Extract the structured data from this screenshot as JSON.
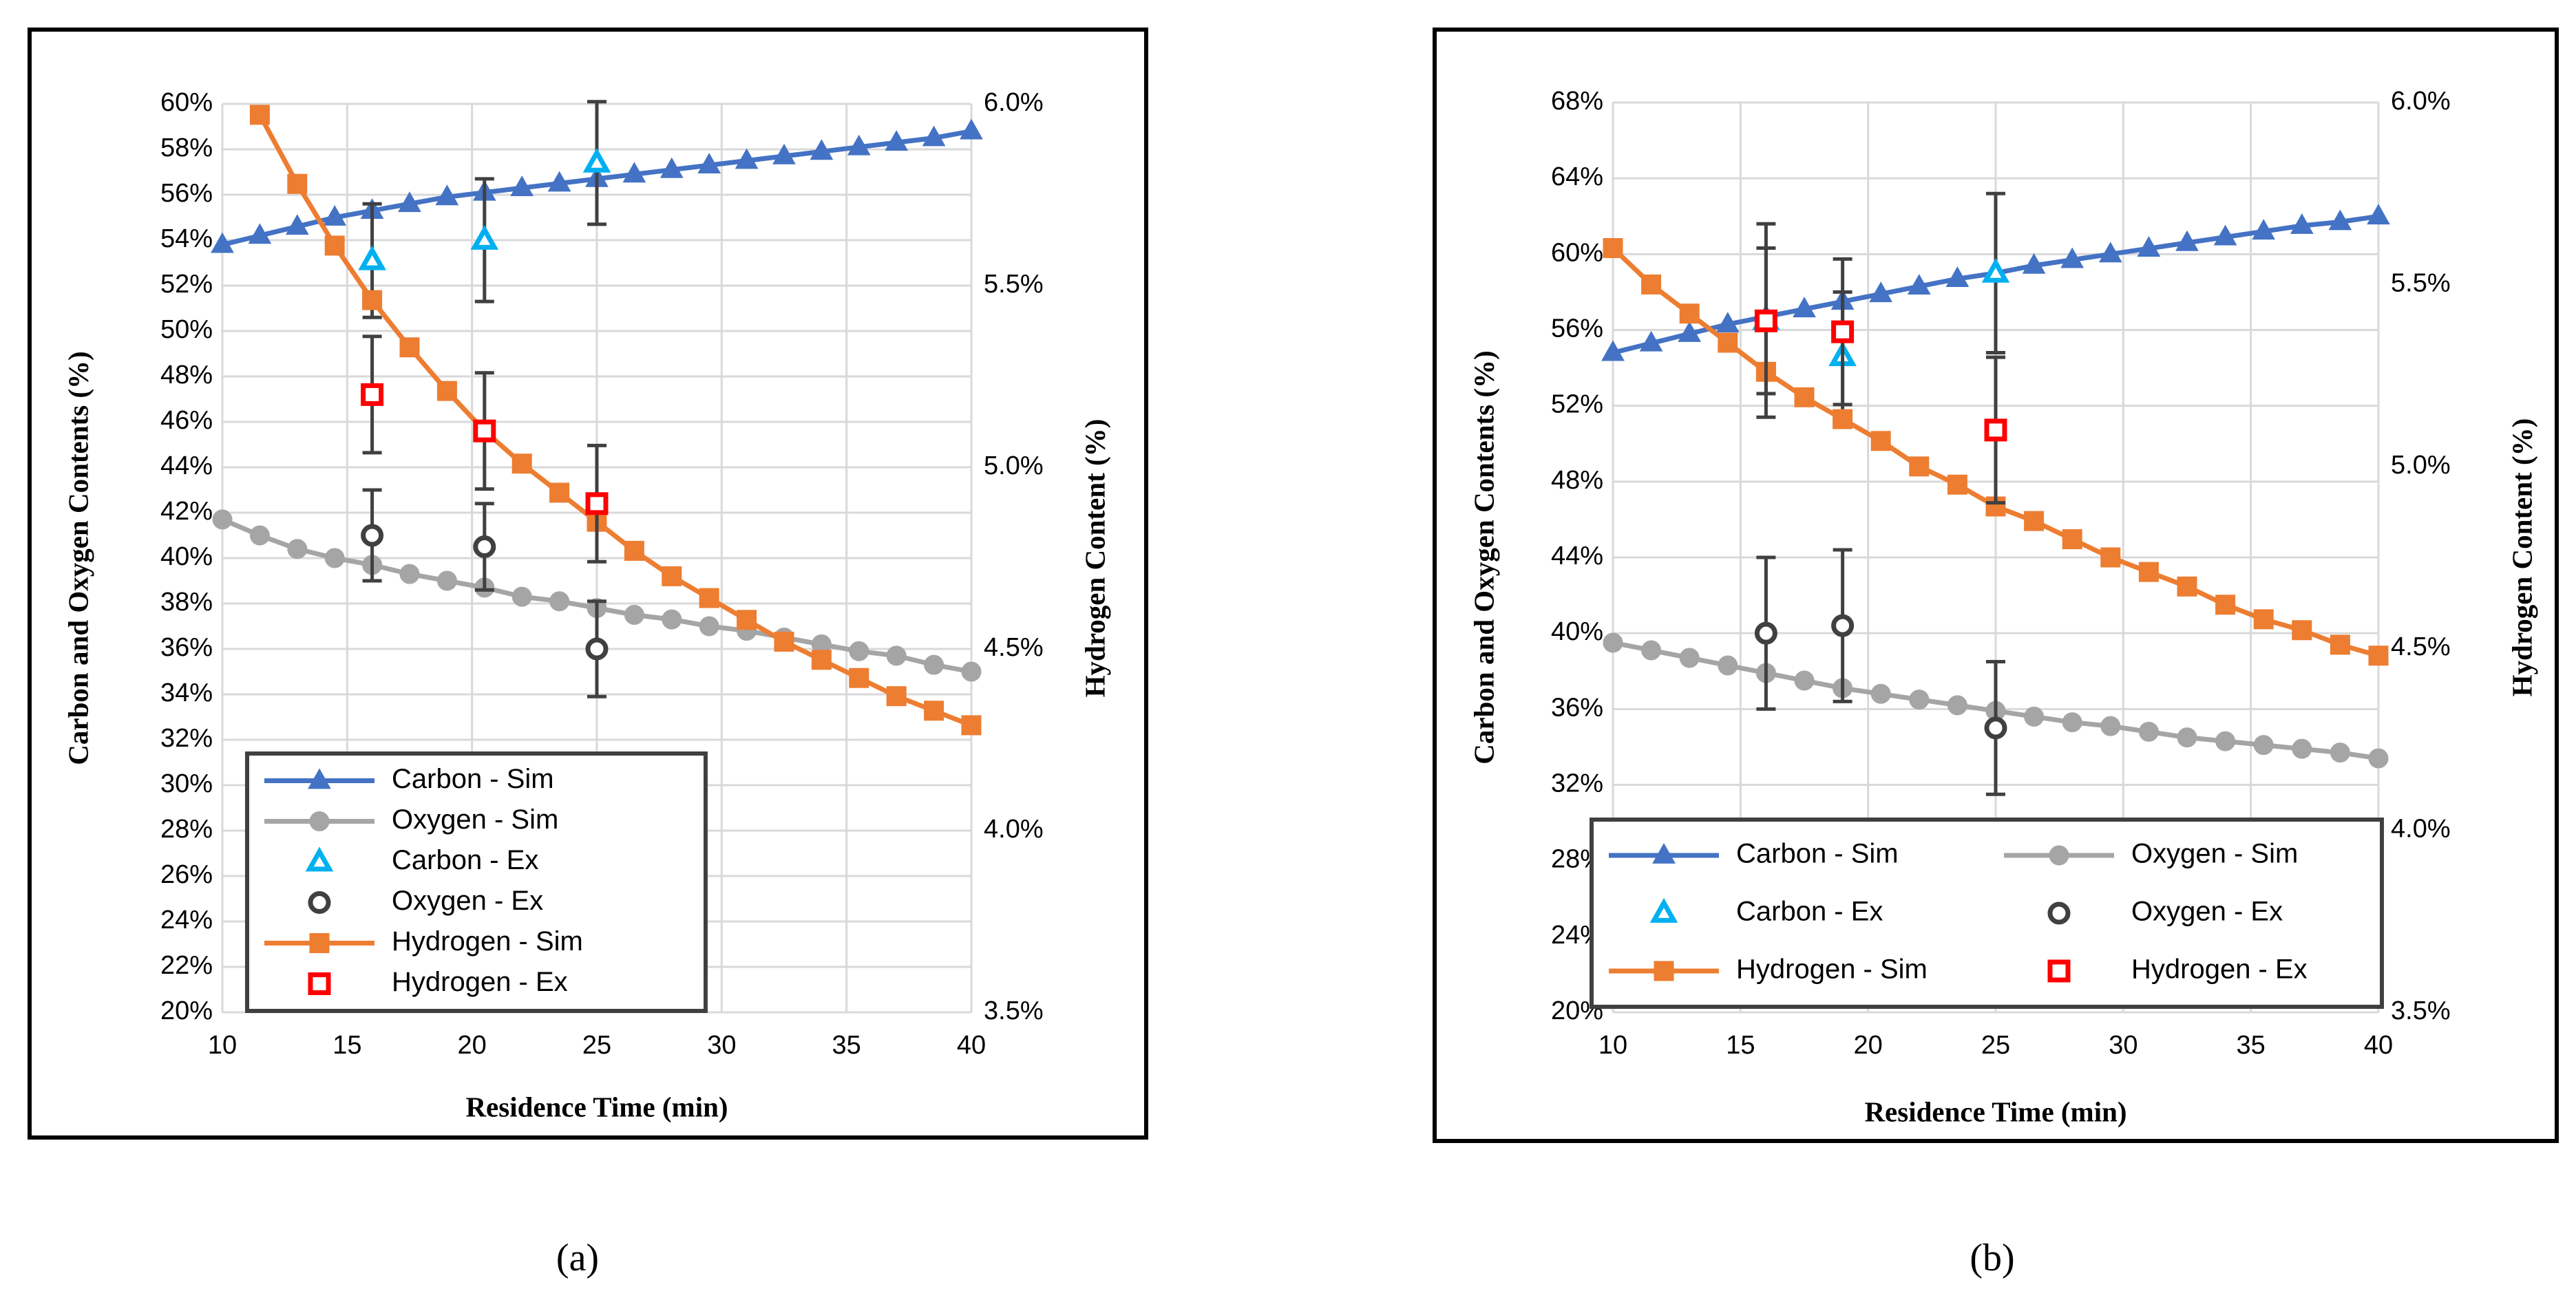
{
  "chart_data": [
    {
      "type": "line",
      "label": "(a)",
      "x_label": "Residence Time (min)",
      "y_label": "Carbon and Oxygen Contents (%)",
      "y2_label": "Hydrogen Content (%)",
      "xlim": [
        10,
        40
      ],
      "xticks": [
        10,
        15,
        20,
        25,
        30,
        35,
        40
      ],
      "ylim": [
        20,
        60
      ],
      "yticks": [
        {
          "value": 20,
          "label": "20%"
        },
        {
          "value": 22,
          "label": "22%"
        },
        {
          "value": 24,
          "label": "24%"
        },
        {
          "value": 26,
          "label": "26%"
        },
        {
          "value": 28,
          "label": "28%"
        },
        {
          "value": 30,
          "label": "30%"
        },
        {
          "value": 32,
          "label": "32%"
        },
        {
          "value": 34,
          "label": "34%"
        },
        {
          "value": 36,
          "label": "36%"
        },
        {
          "value": 38,
          "label": "38%"
        },
        {
          "value": 40,
          "label": "40%"
        },
        {
          "value": 42,
          "label": "42%"
        },
        {
          "value": 44,
          "label": "44%"
        },
        {
          "value": 46,
          "label": "46%"
        },
        {
          "value": 48,
          "label": "48%"
        },
        {
          "value": 50,
          "label": "50%"
        },
        {
          "value": 52,
          "label": "52%"
        },
        {
          "value": 54,
          "label": "54%"
        },
        {
          "value": 56,
          "label": "56%"
        },
        {
          "value": 58,
          "label": "58%"
        },
        {
          "value": 60,
          "label": "60%"
        }
      ],
      "y2lim": [
        3.5,
        6.0
      ],
      "y2ticks": [
        {
          "value": 3.5,
          "label": "3.5%"
        },
        {
          "value": 4.0,
          "label": "4.0%"
        },
        {
          "value": 4.5,
          "label": "4.5%"
        },
        {
          "value": 5.0,
          "label": "5.0%"
        },
        {
          "value": 5.5,
          "label": "5.5%"
        },
        {
          "value": 6.0,
          "label": "6.0%"
        }
      ],
      "grid": true,
      "legend": "lower left",
      "legend_columns": 1,
      "series": [
        {
          "name": "Carbon - Sim",
          "color": "#4472c4",
          "marker": "triangle",
          "filled": true,
          "line": true,
          "x": [
            10,
            11.5,
            13,
            14.5,
            16,
            17.5,
            19,
            20.5,
            22,
            23.5,
            25,
            26.5,
            28,
            29.5,
            31,
            32.5,
            34,
            35.5,
            37,
            38.5,
            40
          ],
          "values": [
            53.8,
            54.2,
            54.6,
            55.0,
            55.3,
            55.6,
            55.9,
            56.1,
            56.3,
            56.5,
            56.7,
            56.9,
            57.1,
            57.3,
            57.5,
            57.7,
            57.9,
            58.1,
            58.3,
            58.5,
            58.8
          ]
        },
        {
          "name": "Oxygen - Sim",
          "color": "#a5a5a5",
          "marker": "circle",
          "filled": true,
          "line": true,
          "x": [
            10,
            11.5,
            13,
            14.5,
            16,
            17.5,
            19,
            20.5,
            22,
            23.5,
            25,
            26.5,
            28,
            29.5,
            31,
            32.5,
            34,
            35.5,
            37,
            38.5,
            40
          ],
          "values": [
            41.7,
            41.0,
            40.4,
            40.0,
            39.7,
            39.3,
            39.0,
            38.7,
            38.3,
            38.1,
            37.8,
            37.5,
            37.3,
            37.0,
            36.8,
            36.5,
            36.2,
            35.9,
            35.7,
            35.3,
            35.0
          ]
        },
        {
          "name": "Carbon - Ex",
          "color": "#00b0f0",
          "marker": "triangle",
          "filled": false,
          "line": false,
          "x": [
            16,
            20.5,
            25
          ],
          "values": [
            53.1,
            54.0,
            57.4
          ],
          "errors": [
            2.5,
            2.7,
            2.7
          ]
        },
        {
          "name": "Oxygen - Ex",
          "color": "#404040",
          "marker": "circle",
          "filled": false,
          "line": false,
          "x": [
            16,
            20.5,
            25
          ],
          "values": [
            41.0,
            40.5,
            36.0
          ],
          "errors": [
            2.0,
            1.9,
            2.1
          ]
        },
        {
          "name": "Hydrogen - Sim",
          "color": "#ed7d31",
          "marker": "square",
          "filled": true,
          "line": true,
          "axis": "y2",
          "x": [
            10,
            11.5,
            13,
            14.5,
            16,
            17.5,
            19,
            20.5,
            22,
            23.5,
            25,
            26.5,
            28,
            29.5,
            31,
            32.5,
            34,
            35.5,
            37,
            38.5,
            40
          ],
          "values": [
            null,
            5.97,
            5.78,
            5.61,
            5.46,
            5.33,
            5.21,
            5.1,
            5.01,
            4.93,
            4.85,
            4.77,
            4.7,
            4.64,
            4.58,
            4.52,
            4.47,
            4.42,
            4.37,
            4.33,
            4.29
          ]
        },
        {
          "name": "Hydrogen - Ex",
          "color": "#ff0000",
          "marker": "square",
          "filled": false,
          "line": false,
          "axis": "y2",
          "x": [
            16,
            20.5,
            25
          ],
          "values": [
            5.2,
            5.1,
            4.9
          ],
          "errors": [
            0.16,
            0.16,
            0.16
          ]
        }
      ]
    },
    {
      "type": "line",
      "label": "(b)",
      "x_label": "Residence Time (min)",
      "y_label": "Carbon and Oxygen Contents (%)",
      "y2_label": "Hydrogen Content (%)",
      "xlim": [
        10,
        40
      ],
      "xticks": [
        10,
        15,
        20,
        25,
        30,
        35,
        40
      ],
      "ylim": [
        20,
        68
      ],
      "yticks": [
        {
          "value": 20,
          "label": "20%"
        },
        {
          "value": 24,
          "label": "24%"
        },
        {
          "value": 28,
          "label": "28%"
        },
        {
          "value": 32,
          "label": "32%"
        },
        {
          "value": 36,
          "label": "36%"
        },
        {
          "value": 40,
          "label": "40%"
        },
        {
          "value": 44,
          "label": "44%"
        },
        {
          "value": 48,
          "label": "48%"
        },
        {
          "value": 52,
          "label": "52%"
        },
        {
          "value": 56,
          "label": "56%"
        },
        {
          "value": 60,
          "label": "60%"
        },
        {
          "value": 64,
          "label": "64%"
        },
        {
          "value": 68,
          "label": "68%"
        }
      ],
      "y2lim": [
        3.5,
        6.0
      ],
      "y2ticks": [
        {
          "value": 3.5,
          "label": "3.5%"
        },
        {
          "value": 4.0,
          "label": "4.0%"
        },
        {
          "value": 4.5,
          "label": "4.5%"
        },
        {
          "value": 5.0,
          "label": "5.0%"
        },
        {
          "value": 5.5,
          "label": "5.5%"
        },
        {
          "value": 6.0,
          "label": "6.0%"
        }
      ],
      "grid": true,
      "legend": "lower center",
      "legend_columns": 2,
      "series": [
        {
          "name": "Carbon - Sim",
          "color": "#4472c4",
          "marker": "triangle",
          "filled": true,
          "line": true,
          "x": [
            10,
            11.5,
            13,
            14.5,
            16,
            17.5,
            19,
            20.5,
            22,
            23.5,
            25,
            26.5,
            28,
            29.5,
            31,
            32.5,
            34,
            35.5,
            37,
            38.5,
            40
          ],
          "values": [
            54.8,
            55.3,
            55.8,
            56.3,
            56.7,
            57.1,
            57.5,
            57.9,
            58.3,
            58.7,
            59.0,
            59.4,
            59.7,
            60.0,
            60.3,
            60.6,
            60.9,
            61.2,
            61.5,
            61.7,
            62.0
          ]
        },
        {
          "name": "Oxygen - Sim",
          "color": "#a5a5a5",
          "marker": "circle",
          "filled": true,
          "line": true,
          "x": [
            10,
            11.5,
            13,
            14.5,
            16,
            17.5,
            19,
            20.5,
            22,
            23.5,
            25,
            26.5,
            28,
            29.5,
            31,
            32.5,
            34,
            35.5,
            37,
            38.5,
            40
          ],
          "values": [
            39.5,
            39.1,
            38.7,
            38.3,
            37.9,
            37.5,
            37.1,
            36.8,
            36.5,
            36.2,
            35.9,
            35.6,
            35.3,
            35.1,
            34.8,
            34.5,
            34.3,
            34.1,
            33.9,
            33.7,
            33.4
          ]
        },
        {
          "name": "Carbon - Ex",
          "color": "#00b0f0",
          "marker": "triangle",
          "filled": false,
          "line": false,
          "x": [
            16,
            19,
            25
          ],
          "values": [
            56.5,
            54.6,
            59.0
          ],
          "errors": [
            5.1,
            3.4,
            4.2
          ]
        },
        {
          "name": "Oxygen - Ex",
          "color": "#404040",
          "marker": "circle",
          "filled": false,
          "line": false,
          "x": [
            16,
            19,
            25
          ],
          "values": [
            40.0,
            40.4,
            35.0
          ],
          "errors": [
            4.0,
            4.0,
            3.5
          ]
        },
        {
          "name": "Hydrogen - Sim",
          "color": "#ed7d31",
          "marker": "square",
          "filled": true,
          "line": true,
          "axis": "y2",
          "x": [
            10,
            11.5,
            13,
            14.5,
            16,
            17.5,
            19,
            20.5,
            22,
            23.5,
            25,
            26.5,
            28,
            29.5,
            31,
            32.5,
            34,
            35.5,
            37,
            38.5,
            40
          ],
          "values": [
            5.6,
            5.5,
            5.42,
            5.34,
            5.26,
            5.19,
            5.13,
            5.07,
            5.0,
            4.95,
            4.89,
            4.85,
            4.8,
            4.75,
            4.71,
            4.67,
            4.62,
            4.58,
            4.55,
            4.51,
            4.48
          ]
        },
        {
          "name": "Hydrogen - Ex",
          "color": "#ff0000",
          "marker": "square",
          "filled": false,
          "line": false,
          "axis": "y2",
          "x": [
            16,
            19,
            25
          ],
          "values": [
            5.4,
            5.37,
            5.1
          ],
          "errors": [
            0.2,
            0.2,
            0.2
          ]
        }
      ]
    }
  ]
}
